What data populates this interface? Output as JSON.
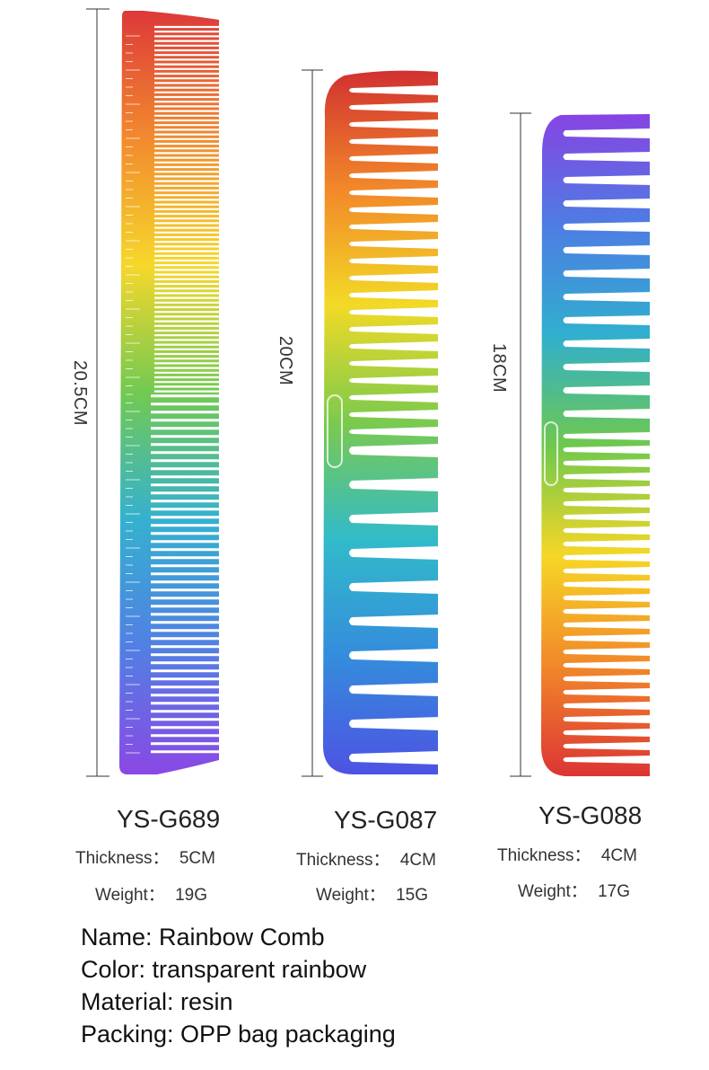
{
  "combs": [
    {
      "model": "YS-G689",
      "length": "20.5CM",
      "thickness_label": "Thickness：",
      "thickness": "5CM",
      "weight_label": "Weight：",
      "weight": "19G",
      "gradient": [
        "#d81e1e",
        "#f07a12",
        "#f5d20e",
        "#5fc23a",
        "#19a6c9",
        "#3a6ee0",
        "#7a2fe0"
      ]
    },
    {
      "model": "YS-G087",
      "length": "20CM",
      "thickness_label": "Thickness：",
      "thickness": "4CM",
      "weight_label": "Weight：",
      "weight": "15G",
      "gradient": [
        "#cc1a1a",
        "#f07a12",
        "#f0d60e",
        "#6cc43a",
        "#1bb3c4",
        "#1e7fd8",
        "#3a3fe0"
      ]
    },
    {
      "model": "YS-G088",
      "length": "18CM",
      "thickness_label": "Thickness：",
      "thickness": "4CM",
      "weight_label": "Weight：",
      "weight": "17G",
      "gradient": [
        "#7a2fe0",
        "#3a6ee0",
        "#19a6c9",
        "#5fc23a",
        "#f5d20e",
        "#f07a12",
        "#d81e1e"
      ]
    }
  ],
  "info": {
    "name": "Name: Rainbow Comb",
    "color": "Color: transparent rainbow",
    "material": "Material: resin",
    "packing": "Packing: OPP bag packaging"
  }
}
